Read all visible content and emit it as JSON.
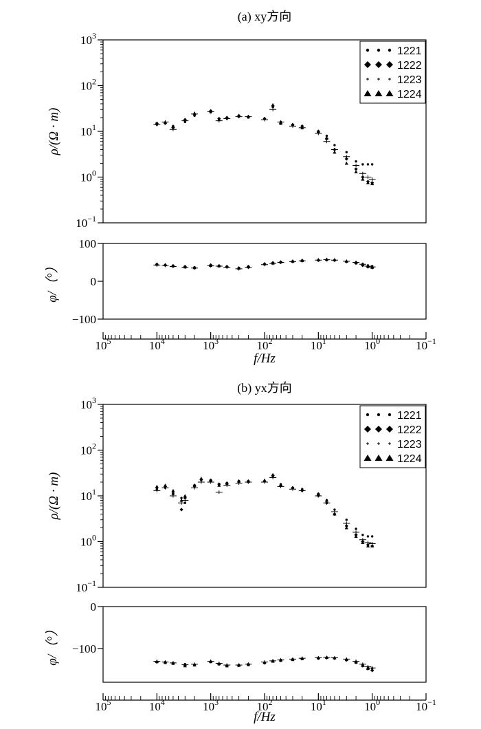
{
  "legend_entries": [
    {
      "label": "1221",
      "marker": "dot"
    },
    {
      "label": "1222",
      "marker": "diamond"
    },
    {
      "label": "1223",
      "marker": "plus"
    },
    {
      "label": "1224",
      "marker": "triangle"
    }
  ],
  "chart_data": [
    {
      "type": "scatter",
      "title": "(a) xy方向",
      "panel": "rho",
      "xlabel": "",
      "ylabel": "ρ/(Ω · m)",
      "xscale": "log",
      "xreversed": true,
      "xlim": [
        100000,
        0.1
      ],
      "yscale": "log",
      "ylim": [
        0.1,
        1000
      ],
      "yticks": [
        {
          "v": 0.1,
          "m": "10",
          "e": "−1"
        },
        {
          "v": 1,
          "m": "10",
          "e": "0"
        },
        {
          "v": 10,
          "m": "10",
          "e": "1"
        },
        {
          "v": 100,
          "m": "10",
          "e": "2"
        },
        {
          "v": 1000,
          "m": "10",
          "e": "3"
        }
      ],
      "legend_position": "top-right",
      "series": [
        {
          "name": "1221",
          "marker": "dot",
          "x": [
            10000,
            7000,
            5000,
            3000,
            2000,
            1000,
            700,
            500,
            300,
            200,
            100,
            70,
            50,
            30,
            20,
            10,
            7,
            5,
            3,
            2,
            1.5,
            1.2,
            1
          ],
          "y": [
            14,
            15,
            13,
            16,
            22,
            26,
            18,
            19,
            21,
            20,
            19,
            34,
            16,
            14,
            12,
            10,
            8,
            5,
            3.5,
            2.2,
            1.9,
            1.9,
            1.9
          ]
        },
        {
          "name": "1222",
          "marker": "diamond",
          "x": [
            10000,
            7000,
            5000,
            3000,
            2000,
            1000,
            700,
            500,
            300,
            200,
            100,
            70,
            50,
            30,
            20,
            10,
            7,
            5,
            3,
            2,
            1.5,
            1.2,
            1
          ],
          "y": [
            15,
            15,
            12,
            18,
            23,
            28,
            19,
            20,
            22,
            21,
            19,
            36,
            15,
            14,
            13,
            10,
            7,
            4,
            2.5,
            1.5,
            1,
            0.8,
            0.75
          ]
        },
        {
          "name": "1223",
          "marker": "plus",
          "x": [
            10000,
            7000,
            5000,
            3000,
            2000,
            1000,
            700,
            500,
            300,
            200,
            100,
            70,
            50,
            30,
            20,
            10,
            7,
            5,
            3,
            2,
            1.5,
            1.2,
            1
          ],
          "y": [
            14,
            16,
            11,
            17,
            24,
            27,
            17,
            19,
            21,
            21,
            18,
            30,
            16,
            13,
            12,
            9,
            6,
            4,
            2.8,
            1.8,
            1.2,
            1,
            0.9
          ]
        },
        {
          "name": "1224",
          "marker": "triangle",
          "x": [
            10000,
            7000,
            5000,
            3000,
            2000,
            1000,
            700,
            500,
            300,
            200,
            100,
            70,
            50,
            30,
            20,
            10,
            7,
            5,
            3,
            2,
            1.5,
            1.2,
            1
          ],
          "y": [
            15,
            16,
            13,
            18,
            25,
            28,
            18,
            20,
            22,
            21,
            19,
            38,
            15,
            14,
            12,
            10,
            7,
            3.5,
            2,
            1.3,
            0.9,
            0.75,
            0.72
          ]
        }
      ]
    },
    {
      "type": "scatter",
      "panel": "phi",
      "xlabel": "f/Hz",
      "ylabel": "φ/（°）",
      "xscale": "log",
      "xreversed": true,
      "xlim": [
        100000,
        0.1
      ],
      "xticks": [
        {
          "v": 100000,
          "m": "10",
          "e": "5"
        },
        {
          "v": 10000,
          "m": "10",
          "e": "4"
        },
        {
          "v": 1000,
          "m": "10",
          "e": "3"
        },
        {
          "v": 100,
          "m": "10",
          "e": "2"
        },
        {
          "v": 10,
          "m": "10",
          "e": "1"
        },
        {
          "v": 1,
          "m": "10",
          "e": "0"
        },
        {
          "v": 0.1,
          "m": "10",
          "e": "−1"
        }
      ],
      "yscale": "linear",
      "ylim": [
        -100,
        100
      ],
      "yticks": [
        {
          "v": 100,
          "m": "100",
          "e": ""
        },
        {
          "v": 0,
          "m": "0",
          "e": ""
        },
        {
          "v": -100,
          "m": "−100",
          "e": ""
        }
      ],
      "series": [
        {
          "name": "1221",
          "marker": "dot",
          "x": [
            10000,
            7000,
            5000,
            3000,
            2000,
            1000,
            700,
            500,
            300,
            200,
            100,
            70,
            50,
            30,
            20,
            10,
            7,
            5,
            3,
            2,
            1.5,
            1.2,
            1
          ],
          "y": [
            44,
            42,
            40,
            38,
            37,
            42,
            40,
            38,
            34,
            38,
            45,
            48,
            50,
            52,
            54,
            55,
            56,
            55,
            52,
            50,
            46,
            42,
            40
          ]
        },
        {
          "name": "1222",
          "marker": "diamond",
          "x": [
            10000,
            7000,
            5000,
            3000,
            2000,
            1000,
            700,
            500,
            300,
            200,
            100,
            70,
            50,
            30,
            20,
            10,
            7,
            5,
            3,
            2,
            1.5,
            1.2,
            1
          ],
          "y": [
            45,
            43,
            41,
            39,
            36,
            43,
            41,
            39,
            35,
            39,
            46,
            49,
            51,
            53,
            55,
            56,
            57,
            56,
            52,
            48,
            42,
            38,
            36
          ]
        },
        {
          "name": "1223",
          "marker": "plus",
          "x": [
            10000,
            7000,
            5000,
            3000,
            2000,
            1000,
            700,
            500,
            300,
            200,
            100,
            70,
            50,
            30,
            20,
            10,
            7,
            5,
            3,
            2,
            1.5,
            1.2,
            1
          ],
          "y": [
            43,
            42,
            39,
            37,
            35,
            41,
            40,
            37,
            33,
            37,
            44,
            47,
            50,
            52,
            54,
            56,
            57,
            56,
            53,
            50,
            45,
            40,
            38
          ]
        },
        {
          "name": "1224",
          "marker": "triangle",
          "x": [
            10000,
            7000,
            5000,
            3000,
            2000,
            1000,
            700,
            500,
            300,
            200,
            100,
            70,
            50,
            30,
            20,
            10,
            7,
            5,
            3,
            2,
            1.5,
            1.2,
            1
          ],
          "y": [
            45,
            44,
            41,
            38,
            36,
            42,
            41,
            39,
            35,
            38,
            46,
            48,
            51,
            53,
            55,
            57,
            58,
            57,
            53,
            49,
            44,
            40,
            37
          ]
        }
      ]
    },
    {
      "type": "scatter",
      "title": "(b) yx方向",
      "panel": "rho",
      "xlabel": "",
      "ylabel": "ρ/(Ω · m)",
      "xscale": "log",
      "xreversed": true,
      "xlim": [
        100000,
        0.1
      ],
      "yscale": "log",
      "ylim": [
        0.1,
        1000
      ],
      "yticks": [
        {
          "v": 0.1,
          "m": "10",
          "e": "−1"
        },
        {
          "v": 1,
          "m": "10",
          "e": "0"
        },
        {
          "v": 10,
          "m": "10",
          "e": "1"
        },
        {
          "v": 100,
          "m": "10",
          "e": "2"
        },
        {
          "v": 1000,
          "m": "10",
          "e": "3"
        }
      ],
      "legend_position": "top-right",
      "series": [
        {
          "name": "1221",
          "marker": "dot",
          "x": [
            10000,
            7000,
            5000,
            3500,
            3000,
            2000,
            1500,
            1000,
            700,
            500,
            300,
            200,
            100,
            70,
            50,
            30,
            20,
            10,
            7,
            5,
            3,
            2,
            1.5,
            1.2,
            1
          ],
          "y": [
            14,
            15,
            12,
            9,
            7,
            16,
            22,
            21,
            17,
            18,
            20,
            20,
            21,
            27,
            18,
            15,
            14,
            10,
            8,
            5,
            3,
            1.9,
            1.4,
            1.3,
            1.3
          ]
        },
        {
          "name": "1222",
          "marker": "diamond",
          "x": [
            10000,
            7000,
            5000,
            3500,
            3000,
            2000,
            1500,
            1000,
            700,
            500,
            300,
            200,
            100,
            70,
            50,
            30,
            20,
            10,
            7,
            5,
            3,
            2,
            1.5,
            1.2,
            1
          ],
          "y": [
            15,
            16,
            11,
            5,
            9,
            17,
            23,
            22,
            18,
            19,
            21,
            21,
            21,
            28,
            17,
            15,
            13,
            11,
            7,
            4,
            2.2,
            1.4,
            1,
            0.85,
            0.8
          ]
        },
        {
          "name": "1223",
          "marker": "plus",
          "x": [
            10000,
            7000,
            5000,
            3500,
            3000,
            2000,
            1500,
            1000,
            700,
            500,
            300,
            200,
            100,
            70,
            50,
            30,
            20,
            10,
            7,
            5,
            3,
            2,
            1.5,
            1.2,
            1
          ],
          "y": [
            13,
            15,
            10,
            7,
            8,
            15,
            20,
            20,
            12,
            17,
            19,
            20,
            20,
            25,
            16,
            14,
            13,
            10,
            7,
            4.5,
            2.5,
            1.6,
            1.1,
            0.95,
            0.9
          ]
        },
        {
          "name": "1224",
          "marker": "triangle",
          "x": [
            10000,
            7000,
            5000,
            3500,
            3000,
            2000,
            1500,
            1000,
            700,
            500,
            300,
            200,
            100,
            70,
            50,
            30,
            20,
            10,
            7,
            5,
            3,
            2,
            1.5,
            1.2,
            1
          ],
          "y": [
            16,
            17,
            13,
            8,
            10,
            17,
            24,
            22,
            17,
            19,
            21,
            21,
            22,
            29,
            17,
            15,
            14,
            11,
            8,
            4,
            2,
            1.3,
            0.95,
            0.8,
            0.8
          ]
        }
      ]
    },
    {
      "type": "scatter",
      "panel": "phi",
      "xlabel": "f/Hz",
      "ylabel": "φ/（°）",
      "xscale": "log",
      "xreversed": true,
      "xlim": [
        100000,
        0.1
      ],
      "xticks": [
        {
          "v": 100000,
          "m": "10",
          "e": "5"
        },
        {
          "v": 10000,
          "m": "10",
          "e": "4"
        },
        {
          "v": 1000,
          "m": "10",
          "e": "3"
        },
        {
          "v": 100,
          "m": "10",
          "e": "2"
        },
        {
          "v": 10,
          "m": "10",
          "e": "1"
        },
        {
          "v": 1,
          "m": "10",
          "e": "0"
        },
        {
          "v": 0.1,
          "m": "10",
          "e": "−1"
        }
      ],
      "yscale": "linear",
      "ylim": [
        -180,
        0
      ],
      "yticks": [
        {
          "v": 0,
          "m": "0",
          "e": ""
        },
        {
          "v": -100,
          "m": "−100",
          "e": ""
        }
      ],
      "series": [
        {
          "name": "1221",
          "marker": "dot",
          "x": [
            10000,
            7000,
            5000,
            3000,
            2000,
            1000,
            700,
            500,
            300,
            200,
            100,
            70,
            50,
            30,
            20,
            10,
            7,
            5,
            3,
            2,
            1.5,
            1.2,
            1
          ],
          "y": [
            -131,
            -132,
            -134,
            -137,
            -138,
            -132,
            -136,
            -140,
            -139,
            -137,
            -133,
            -129,
            -127,
            -125,
            -124,
            -122,
            -121,
            -122,
            -126,
            -131,
            -138,
            -144,
            -147
          ]
        },
        {
          "name": "1222",
          "marker": "diamond",
          "x": [
            10000,
            7000,
            5000,
            3000,
            2000,
            1000,
            700,
            500,
            300,
            200,
            100,
            70,
            50,
            30,
            20,
            10,
            7,
            5,
            3,
            2,
            1.5,
            1.2,
            1
          ],
          "y": [
            -132,
            -133,
            -135,
            -140,
            -139,
            -131,
            -137,
            -141,
            -140,
            -138,
            -134,
            -130,
            -128,
            -126,
            -124,
            -123,
            -122,
            -123,
            -127,
            -133,
            -141,
            -148,
            -152
          ]
        },
        {
          "name": "1223",
          "marker": "plus",
          "x": [
            10000,
            7000,
            5000,
            3000,
            2000,
            1000,
            700,
            500,
            300,
            200,
            100,
            70,
            50,
            30,
            20,
            10,
            7,
            5,
            3,
            2,
            1.5,
            1.2,
            1
          ],
          "y": [
            -130,
            -132,
            -134,
            -138,
            -137,
            -130,
            -135,
            -139,
            -139,
            -137,
            -132,
            -129,
            -127,
            -125,
            -123,
            -122,
            -121,
            -122,
            -125,
            -130,
            -137,
            -143,
            -146
          ]
        },
        {
          "name": "1224",
          "marker": "triangle",
          "x": [
            10000,
            7000,
            5000,
            3000,
            2000,
            1000,
            700,
            500,
            300,
            200,
            100,
            70,
            50,
            30,
            20,
            10,
            7,
            5,
            3,
            2,
            1.5,
            1.2,
            1
          ],
          "y": [
            -131,
            -133,
            -135,
            -141,
            -139,
            -131,
            -136,
            -141,
            -140,
            -138,
            -133,
            -130,
            -128,
            -126,
            -124,
            -122,
            -121,
            -122,
            -126,
            -132,
            -140,
            -147,
            -150
          ]
        }
      ]
    }
  ]
}
